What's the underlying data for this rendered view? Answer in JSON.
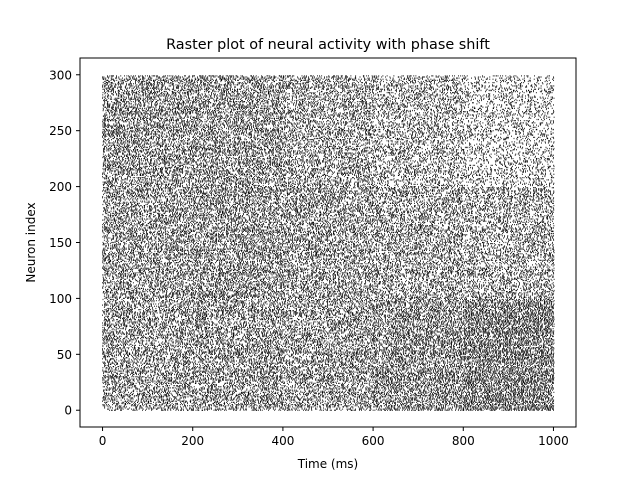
{
  "chart_data": {
    "type": "scatter",
    "style": "raster",
    "title": "Raster plot of neural activity with phase shift",
    "xlabel": "Time (ms)",
    "ylabel": "Neuron index",
    "xlim": [
      -50,
      1050
    ],
    "ylim": [
      -15,
      315
    ],
    "x_ticks": [
      0,
      200,
      400,
      600,
      800,
      1000
    ],
    "y_ticks": [
      0,
      50,
      100,
      150,
      200,
      250,
      300
    ],
    "grid": false,
    "legend": "none",
    "marker": "vertical-tick",
    "color": "#000000",
    "neurons": {
      "first_index": 0,
      "last_index": 299
    },
    "time_window": [
      0,
      1000
    ],
    "spike_density": {
      "description": "approximate fraction of time bins containing a spike, by neuron band and time band",
      "time_bands": [
        [
          0,
          200
        ],
        [
          200,
          400
        ],
        [
          400,
          600
        ],
        [
          600,
          800
        ],
        [
          800,
          1000
        ]
      ],
      "neuron_bands": [
        {
          "range": [
            0,
            100
          ],
          "density": [
            0.52,
            0.56,
            0.55,
            0.62,
            0.72
          ]
        },
        {
          "range": [
            100,
            200
          ],
          "density": [
            0.55,
            0.58,
            0.54,
            0.5,
            0.45
          ]
        },
        {
          "range": [
            200,
            300
          ],
          "density": [
            0.58,
            0.56,
            0.5,
            0.42,
            0.3
          ]
        }
      ]
    }
  }
}
